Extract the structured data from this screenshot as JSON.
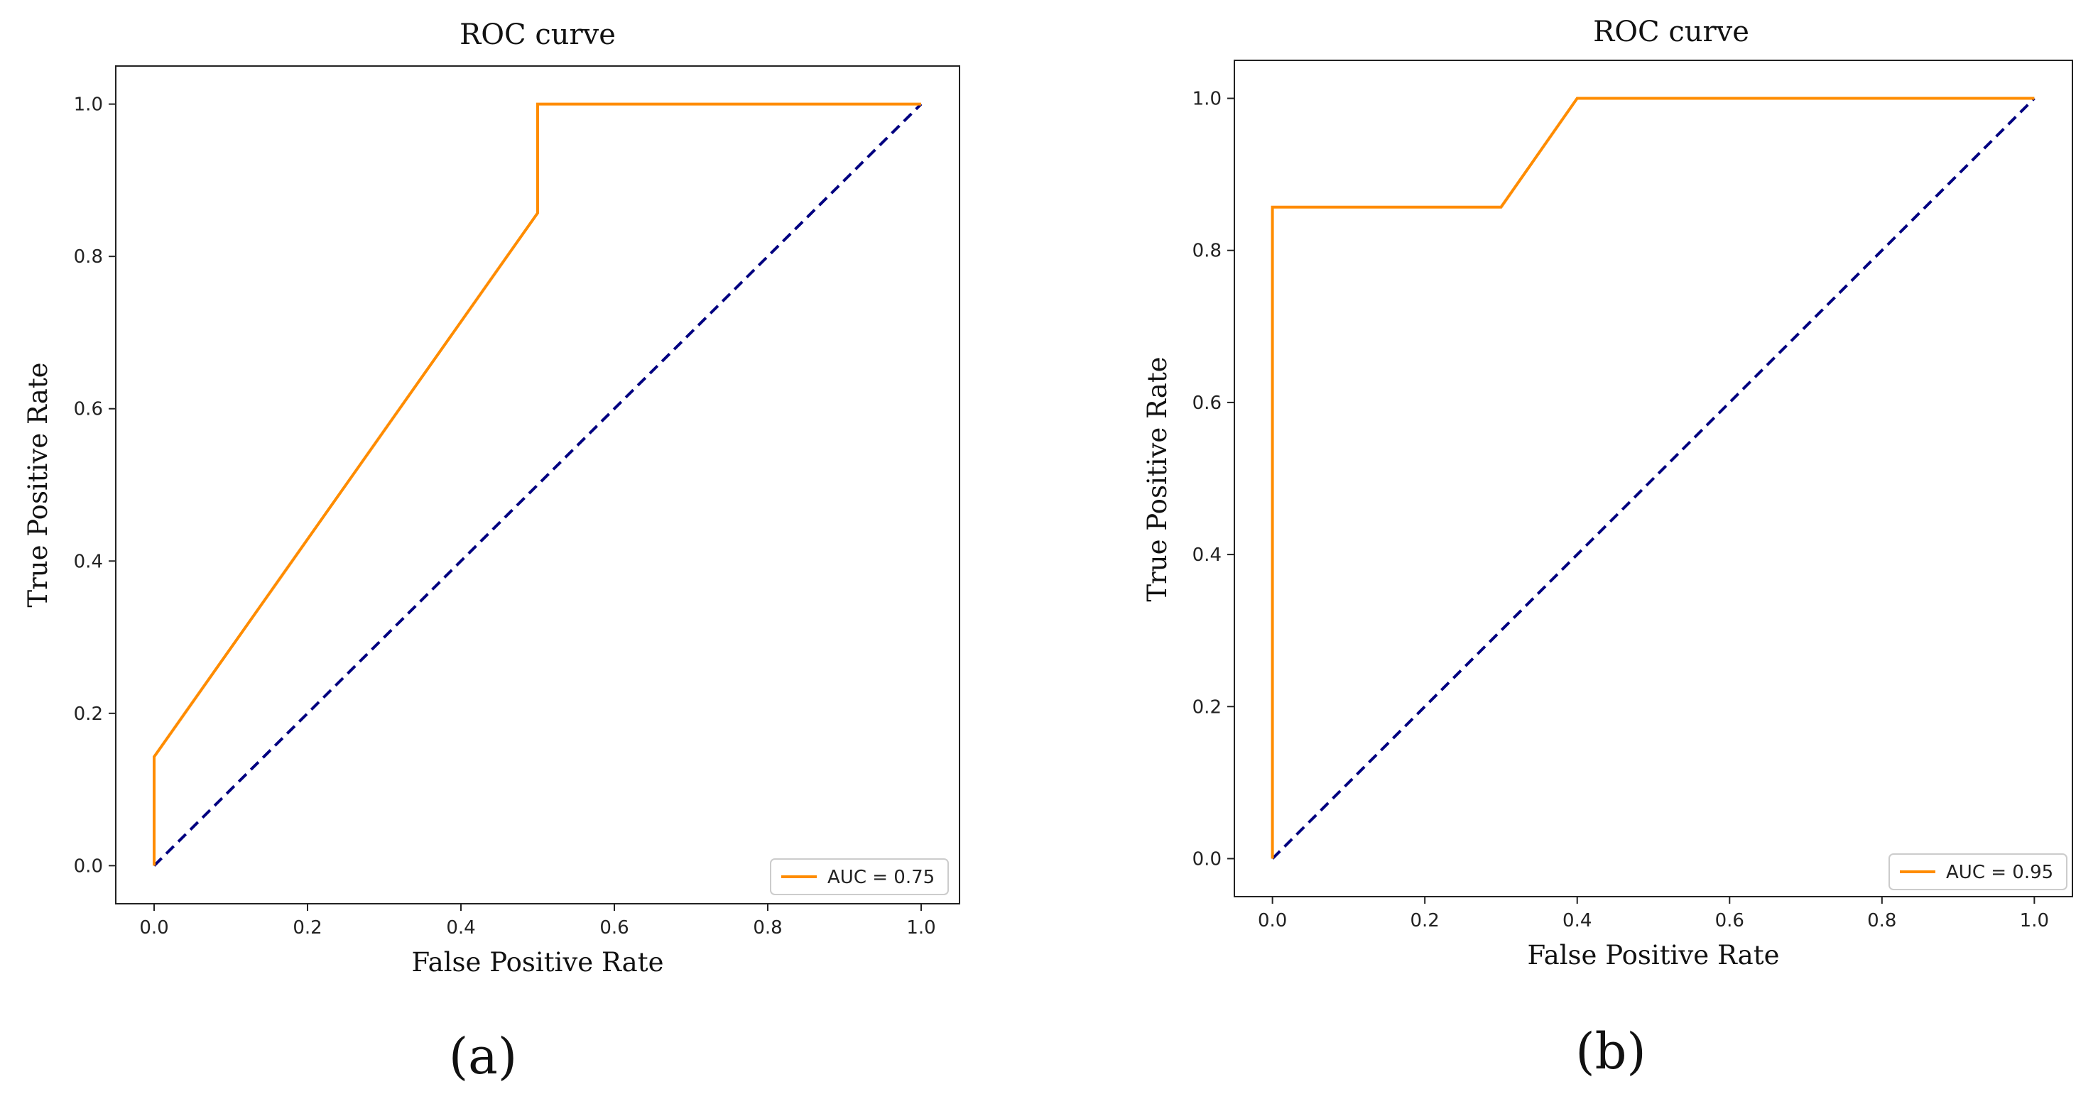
{
  "chart_data": [
    {
      "type": "line",
      "panel": "(a)",
      "title": "ROC curve",
      "xlabel": "False Positive Rate",
      "ylabel": "True Positive Rate",
      "xlim": [
        -0.05,
        1.05
      ],
      "ylim": [
        -0.05,
        1.05
      ],
      "xticks": [
        "0.0",
        "0.2",
        "0.4",
        "0.6",
        "0.8",
        "1.0"
      ],
      "yticks": [
        "0.0",
        "0.2",
        "0.4",
        "0.6",
        "0.8",
        "1.0"
      ],
      "grid": false,
      "legend_position": "bottom-right",
      "series": [
        {
          "name": "AUC = 0.75",
          "color": "#ff8c00",
          "style": "solid",
          "x": [
            0.0,
            0.0,
            0.5,
            0.5,
            1.0
          ],
          "y": [
            0.0,
            0.143,
            0.857,
            1.0,
            1.0
          ]
        },
        {
          "color": "#000080",
          "style": "dashed",
          "x": [
            0.0,
            1.0
          ],
          "y": [
            0.0,
            1.0
          ]
        }
      ]
    },
    {
      "type": "line",
      "panel": "(b)",
      "title": "ROC curve",
      "xlabel": "False Positive Rate",
      "ylabel": "True Positive Rate",
      "xlim": [
        -0.05,
        1.05
      ],
      "ylim": [
        -0.05,
        1.05
      ],
      "xticks": [
        "0.0",
        "0.2",
        "0.4",
        "0.6",
        "0.8",
        "1.0"
      ],
      "yticks": [
        "0.0",
        "0.2",
        "0.4",
        "0.6",
        "0.8",
        "1.0"
      ],
      "grid": false,
      "legend_position": "bottom-right",
      "series": [
        {
          "name": "AUC = 0.95",
          "color": "#ff8c00",
          "style": "solid",
          "x": [
            0.0,
            0.0,
            0.3,
            0.4,
            1.0
          ],
          "y": [
            0.0,
            0.857,
            0.857,
            1.0,
            1.0
          ]
        },
        {
          "color": "#000080",
          "style": "dashed",
          "x": [
            0.0,
            1.0
          ],
          "y": [
            0.0,
            1.0
          ]
        }
      ]
    }
  ]
}
